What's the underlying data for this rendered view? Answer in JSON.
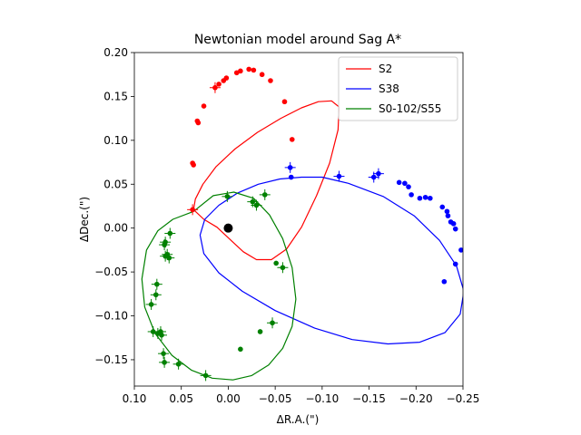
{
  "chart_data": {
    "type": "scatter",
    "title": "Newtonian model around Sag A*",
    "xlabel": "ΔR.A.(\")",
    "ylabel": "ΔDec.(\")",
    "xlim": [
      0.1,
      -0.25
    ],
    "ylim": [
      -0.18,
      0.2
    ],
    "xticks": [
      0.1,
      0.05,
      0.0,
      -0.05,
      -0.1,
      -0.15,
      -0.2,
      -0.25
    ],
    "xtick_labels": [
      "0.10",
      "0.05",
      "0.00",
      "−0.05",
      "−0.10",
      "−0.15",
      "−0.20",
      "−0.25"
    ],
    "yticks": [
      0.2,
      0.15,
      0.1,
      0.05,
      0.0,
      -0.05,
      -0.1,
      -0.15
    ],
    "ytick_labels": [
      "0.20",
      "0.15",
      "0.10",
      "0.05",
      "0.00",
      "−0.05",
      "−0.10",
      "−0.15"
    ],
    "legend_position": "top-right",
    "center": {
      "name": "Sag A*",
      "x": 0.0,
      "y": 0.0,
      "color": "#000000"
    },
    "series": [
      {
        "name": "S2",
        "color": "#ff0000",
        "orbit": [
          [
            0.037,
            0.021
          ],
          [
            0.026,
            0.01
          ],
          [
            0.012,
            0.001
          ],
          [
            -0.002,
            -0.013
          ],
          [
            -0.016,
            -0.027
          ],
          [
            -0.03,
            -0.036
          ],
          [
            -0.046,
            -0.036
          ],
          [
            -0.062,
            -0.024
          ],
          [
            -0.078,
            0.001
          ],
          [
            -0.094,
            0.037
          ],
          [
            -0.108,
            0.074
          ],
          [
            -0.117,
            0.112
          ],
          [
            -0.118,
            0.138
          ],
          [
            -0.11,
            0.145
          ],
          [
            -0.096,
            0.144
          ],
          [
            -0.078,
            0.137
          ],
          [
            -0.056,
            0.125
          ],
          [
            -0.031,
            0.109
          ],
          [
            -0.007,
            0.09
          ],
          [
            0.013,
            0.07
          ],
          [
            0.027,
            0.05
          ],
          [
            0.035,
            0.033
          ],
          [
            0.037,
            0.021
          ]
        ],
        "points": [
          {
            "x": 0.038,
            "y": 0.021,
            "err": true
          },
          {
            "x": 0.037,
            "y": 0.072,
            "err": false
          },
          {
            "x": 0.038,
            "y": 0.074,
            "err": false
          },
          {
            "x": 0.032,
            "y": 0.12,
            "err": false
          },
          {
            "x": 0.033,
            "y": 0.122,
            "err": false
          },
          {
            "x": 0.026,
            "y": 0.139,
            "err": false
          },
          {
            "x": 0.014,
            "y": 0.16,
            "err": true
          },
          {
            "x": 0.01,
            "y": 0.164,
            "err": false
          },
          {
            "x": 0.005,
            "y": 0.168,
            "err": false
          },
          {
            "x": 0.002,
            "y": 0.171,
            "err": false
          },
          {
            "x": -0.009,
            "y": 0.177,
            "err": false
          },
          {
            "x": -0.013,
            "y": 0.179,
            "err": false
          },
          {
            "x": -0.022,
            "y": 0.181,
            "err": false
          },
          {
            "x": -0.027,
            "y": 0.18,
            "err": false
          },
          {
            "x": -0.036,
            "y": 0.175,
            "err": false
          },
          {
            "x": -0.045,
            "y": 0.168,
            "err": false
          },
          {
            "x": -0.06,
            "y": 0.144,
            "err": false
          },
          {
            "x": -0.068,
            "y": 0.101,
            "err": false
          }
        ]
      },
      {
        "name": "S38",
        "color": "#0000ff",
        "orbit": [
          [
            -0.078,
            0.058
          ],
          [
            -0.055,
            0.056
          ],
          [
            -0.032,
            0.05
          ],
          [
            -0.01,
            0.04
          ],
          [
            0.01,
            0.026
          ],
          [
            0.025,
            0.01
          ],
          [
            0.03,
            -0.008
          ],
          [
            0.026,
            -0.029
          ],
          [
            0.01,
            -0.051
          ],
          [
            -0.015,
            -0.072
          ],
          [
            -0.05,
            -0.094
          ],
          [
            -0.092,
            -0.114
          ],
          [
            -0.132,
            -0.127
          ],
          [
            -0.17,
            -0.132
          ],
          [
            -0.204,
            -0.13
          ],
          [
            -0.231,
            -0.119
          ],
          [
            -0.247,
            -0.098
          ],
          [
            -0.251,
            -0.072
          ],
          [
            -0.243,
            -0.043
          ],
          [
            -0.225,
            -0.014
          ],
          [
            -0.198,
            0.014
          ],
          [
            -0.165,
            0.036
          ],
          [
            -0.128,
            0.051
          ],
          [
            -0.1,
            0.058
          ],
          [
            -0.078,
            0.058
          ]
        ],
        "points": [
          {
            "x": -0.066,
            "y": 0.069,
            "err": true
          },
          {
            "x": -0.067,
            "y": 0.058,
            "err": false
          },
          {
            "x": -0.118,
            "y": 0.059,
            "err": true
          },
          {
            "x": -0.155,
            "y": 0.058,
            "err": true
          },
          {
            "x": -0.16,
            "y": 0.062,
            "err": true
          },
          {
            "x": -0.182,
            "y": 0.052,
            "err": false
          },
          {
            "x": -0.188,
            "y": 0.051,
            "err": false
          },
          {
            "x": -0.192,
            "y": 0.047,
            "err": false
          },
          {
            "x": -0.195,
            "y": 0.038,
            "err": false
          },
          {
            "x": -0.204,
            "y": 0.034,
            "err": false
          },
          {
            "x": -0.21,
            "y": 0.035,
            "err": false
          },
          {
            "x": -0.215,
            "y": 0.034,
            "err": false
          },
          {
            "x": -0.228,
            "y": 0.024,
            "err": false
          },
          {
            "x": -0.233,
            "y": 0.019,
            "err": false
          },
          {
            "x": -0.234,
            "y": 0.014,
            "err": false
          },
          {
            "x": -0.237,
            "y": 0.007,
            "err": false
          },
          {
            "x": -0.24,
            "y": 0.005,
            "err": false
          },
          {
            "x": -0.242,
            "y": -0.001,
            "err": false
          },
          {
            "x": -0.248,
            "y": -0.025,
            "err": false
          },
          {
            "x": -0.242,
            "y": -0.041,
            "err": false
          },
          {
            "x": -0.23,
            "y": -0.061,
            "err": false
          }
        ]
      },
      {
        "name": "S0-102/S55",
        "color": "#008000",
        "orbit": [
          [
            0.037,
            0.019
          ],
          [
            0.016,
            0.037
          ],
          [
            -0.006,
            0.041
          ],
          [
            -0.027,
            0.034
          ],
          [
            -0.044,
            0.015
          ],
          [
            -0.058,
            -0.012
          ],
          [
            -0.068,
            -0.045
          ],
          [
            -0.072,
            -0.081
          ],
          [
            -0.068,
            -0.112
          ],
          [
            -0.058,
            -0.137
          ],
          [
            -0.043,
            -0.156
          ],
          [
            -0.025,
            -0.168
          ],
          [
            -0.005,
            -0.173
          ],
          [
            0.017,
            -0.171
          ],
          [
            0.039,
            -0.162
          ],
          [
            0.06,
            -0.145
          ],
          [
            0.078,
            -0.12
          ],
          [
            0.089,
            -0.09
          ],
          [
            0.092,
            -0.058
          ],
          [
            0.087,
            -0.025
          ],
          [
            0.075,
            -0.003
          ],
          [
            0.059,
            0.01
          ],
          [
            0.037,
            0.019
          ]
        ],
        "points": [
          {
            "x": 0.001,
            "y": 0.036,
            "err": true
          },
          {
            "x": -0.026,
            "y": 0.03,
            "err": true
          },
          {
            "x": -0.03,
            "y": 0.026,
            "err": true
          },
          {
            "x": -0.039,
            "y": 0.038,
            "err": true
          },
          {
            "x": -0.051,
            "y": -0.04,
            "err": false
          },
          {
            "x": -0.058,
            "y": -0.045,
            "err": true
          },
          {
            "x": -0.047,
            "y": -0.108,
            "err": true
          },
          {
            "x": -0.034,
            "y": -0.118,
            "err": false
          },
          {
            "x": -0.013,
            "y": -0.138,
            "err": false
          },
          {
            "x": 0.024,
            "y": -0.168,
            "err": true
          },
          {
            "x": 0.053,
            "y": -0.155,
            "err": true
          },
          {
            "x": 0.068,
            "y": -0.153,
            "err": true
          },
          {
            "x": 0.069,
            "y": -0.143,
            "err": true
          },
          {
            "x": 0.071,
            "y": -0.122,
            "err": true
          },
          {
            "x": 0.072,
            "y": -0.118,
            "err": true
          },
          {
            "x": 0.075,
            "y": -0.12,
            "err": true
          },
          {
            "x": 0.08,
            "y": -0.118,
            "err": true
          },
          {
            "x": 0.082,
            "y": -0.087,
            "err": true
          },
          {
            "x": 0.077,
            "y": -0.076,
            "err": true
          },
          {
            "x": 0.076,
            "y": -0.064,
            "err": true
          },
          {
            "x": 0.063,
            "y": -0.034,
            "err": true
          },
          {
            "x": 0.067,
            "y": -0.032,
            "err": true
          },
          {
            "x": 0.065,
            "y": -0.03,
            "err": true
          },
          {
            "x": 0.062,
            "y": -0.006,
            "err": true
          },
          {
            "x": 0.067,
            "y": -0.016,
            "err": true
          },
          {
            "x": 0.068,
            "y": -0.019,
            "err": true
          }
        ]
      }
    ]
  }
}
